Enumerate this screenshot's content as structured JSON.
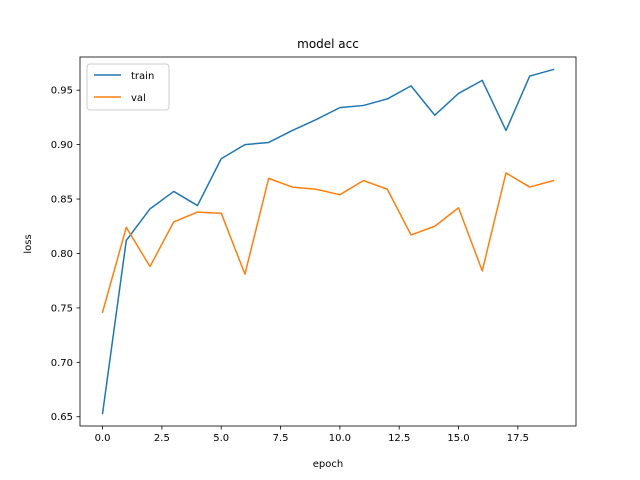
{
  "chart_data": {
    "type": "line",
    "title": "model acc",
    "xlabel": "epoch",
    "ylabel": "loss",
    "x": [
      0,
      1,
      2,
      3,
      4,
      5,
      6,
      7,
      8,
      9,
      10,
      11,
      12,
      13,
      14,
      15,
      16,
      17,
      18,
      19
    ],
    "xlim": [
      -0.95,
      19.95
    ],
    "ylim": [
      0.6415,
      0.9805
    ],
    "xticks": [
      0.0,
      2.5,
      5.0,
      7.5,
      10.0,
      12.5,
      15.0,
      17.5
    ],
    "xtick_labels": [
      "0.0",
      "2.5",
      "5.0",
      "7.5",
      "10.0",
      "12.5",
      "15.0",
      "17.5"
    ],
    "yticks": [
      0.65,
      0.7,
      0.75,
      0.8,
      0.85,
      0.9,
      0.95
    ],
    "ytick_labels": [
      "0.65",
      "0.70",
      "0.75",
      "0.80",
      "0.85",
      "0.90",
      "0.95"
    ],
    "grid": false,
    "legend_position": "top-left",
    "series": [
      {
        "name": "train",
        "color": "#1f77b4",
        "values": [
          0.653,
          0.812,
          0.841,
          0.857,
          0.844,
          0.887,
          0.9,
          0.902,
          0.913,
          0.923,
          0.934,
          0.936,
          0.942,
          0.954,
          0.927,
          0.947,
          0.959,
          0.913,
          0.963,
          0.969
        ]
      },
      {
        "name": "val",
        "color": "#ff7f0e",
        "values": [
          0.746,
          0.824,
          0.788,
          0.829,
          0.838,
          0.837,
          0.781,
          0.869,
          0.861,
          0.859,
          0.854,
          0.867,
          0.859,
          0.817,
          0.825,
          0.842,
          0.784,
          0.874,
          0.861,
          0.867
        ]
      }
    ]
  }
}
